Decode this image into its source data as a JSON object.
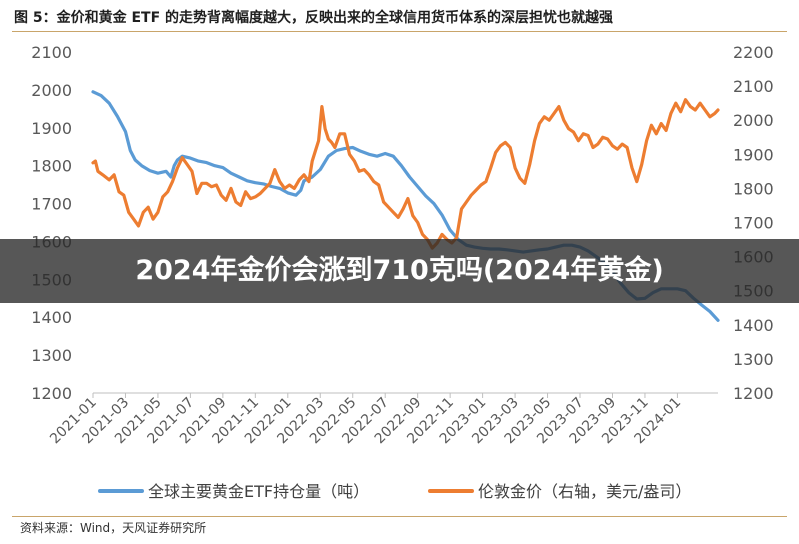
{
  "figure": {
    "title": "图 5：金价和黄金 ETF 的走势背离幅度越大，反映出来的全球信用货币体系的深层担忧也就越强",
    "source": "资料来源：Wind，天风证券研究所"
  },
  "overlay": {
    "headline": "2024年金价会涨到710克吗(2024年黄金)"
  },
  "colors": {
    "etf": "#5b9bd5",
    "gold": "#ed7d31",
    "axis": "#bfbfbf",
    "tick_text": "#595959",
    "banner": "#282828"
  },
  "chart_data": {
    "type": "line",
    "x_tick_labels": [
      "2021-01",
      "2021-03",
      "2021-05",
      "2021-07",
      "2021-09",
      "2021-11",
      "2022-01",
      "2022-03",
      "2022-05",
      "2022-07",
      "2022-09",
      "2022-11",
      "2023-01",
      "2023-03",
      "2023-05",
      "2023-07",
      "2023-09",
      "2023-11",
      "2024-01"
    ],
    "x_range_months": [
      0,
      38.5
    ],
    "grid": false,
    "legend_position": "bottom",
    "y_left": {
      "ticks": [
        1200,
        1300,
        1400,
        1500,
        1600,
        1700,
        1800,
        1900,
        2000,
        2100
      ],
      "ylim": [
        1200,
        2100
      ]
    },
    "y_right": {
      "ticks": [
        1200,
        1300,
        1400,
        1500,
        1600,
        1700,
        1800,
        1900,
        2000,
        2100,
        2200
      ],
      "ylim": [
        1200,
        2200
      ]
    },
    "series": [
      {
        "name": "全球主要黄金ETF持仓量（吨）",
        "axis": "left",
        "points": [
          [
            0.0,
            1995
          ],
          [
            0.5,
            1985
          ],
          [
            1.0,
            1965
          ],
          [
            1.5,
            1930
          ],
          [
            2.0,
            1890
          ],
          [
            2.3,
            1840
          ],
          [
            2.6,
            1815
          ],
          [
            3.0,
            1800
          ],
          [
            3.5,
            1787
          ],
          [
            4.0,
            1780
          ],
          [
            4.5,
            1785
          ],
          [
            4.8,
            1770
          ],
          [
            5.0,
            1800
          ],
          [
            5.2,
            1815
          ],
          [
            5.5,
            1825
          ],
          [
            6.0,
            1820
          ],
          [
            6.5,
            1812
          ],
          [
            7.0,
            1808
          ],
          [
            7.5,
            1800
          ],
          [
            8.0,
            1795
          ],
          [
            8.5,
            1780
          ],
          [
            9.0,
            1770
          ],
          [
            9.5,
            1760
          ],
          [
            10.0,
            1755
          ],
          [
            10.5,
            1752
          ],
          [
            11.0,
            1745
          ],
          [
            11.5,
            1740
          ],
          [
            12.0,
            1728
          ],
          [
            12.5,
            1722
          ],
          [
            12.8,
            1735
          ],
          [
            13.0,
            1760
          ],
          [
            13.5,
            1770
          ],
          [
            14.0,
            1790
          ],
          [
            14.5,
            1825
          ],
          [
            15.0,
            1840
          ],
          [
            15.5,
            1845
          ],
          [
            16.0,
            1848
          ],
          [
            16.5,
            1838
          ],
          [
            17.0,
            1830
          ],
          [
            17.5,
            1825
          ],
          [
            18.0,
            1832
          ],
          [
            18.5,
            1825
          ],
          [
            19.0,
            1800
          ],
          [
            19.5,
            1770
          ],
          [
            20.0,
            1745
          ],
          [
            20.5,
            1720
          ],
          [
            21.0,
            1700
          ],
          [
            21.5,
            1670
          ],
          [
            22.0,
            1630
          ],
          [
            22.5,
            1605
          ],
          [
            23.0,
            1590
          ],
          [
            23.5,
            1585
          ],
          [
            24.0,
            1582
          ],
          [
            24.5,
            1580
          ],
          [
            25.0,
            1580
          ],
          [
            25.5,
            1578
          ],
          [
            26.0,
            1575
          ],
          [
            26.5,
            1572
          ],
          [
            27.0,
            1575
          ],
          [
            27.5,
            1578
          ],
          [
            28.0,
            1580
          ],
          [
            28.5,
            1585
          ],
          [
            29.0,
            1590
          ],
          [
            29.5,
            1590
          ],
          [
            30.0,
            1585
          ],
          [
            30.5,
            1575
          ],
          [
            31.0,
            1560
          ],
          [
            31.5,
            1545
          ],
          [
            32.0,
            1520
          ],
          [
            32.5,
            1490
          ],
          [
            33.0,
            1465
          ],
          [
            33.5,
            1448
          ],
          [
            34.0,
            1450
          ],
          [
            34.5,
            1465
          ],
          [
            35.0,
            1475
          ],
          [
            35.5,
            1475
          ],
          [
            36.0,
            1475
          ],
          [
            36.5,
            1470
          ],
          [
            37.0,
            1450
          ],
          [
            37.5,
            1432
          ],
          [
            38.0,
            1415
          ],
          [
            38.5,
            1392
          ]
        ]
      },
      {
        "name": "伦敦金价（右轴，美元/盎司）",
        "axis": "right",
        "points": [
          [
            0.0,
            1875
          ],
          [
            0.15,
            1880
          ],
          [
            0.3,
            1850
          ],
          [
            0.6,
            1840
          ],
          [
            1.0,
            1825
          ],
          [
            1.3,
            1840
          ],
          [
            1.6,
            1790
          ],
          [
            1.9,
            1780
          ],
          [
            2.2,
            1730
          ],
          [
            2.5,
            1710
          ],
          [
            2.8,
            1690
          ],
          [
            3.1,
            1730
          ],
          [
            3.4,
            1745
          ],
          [
            3.7,
            1710
          ],
          [
            4.0,
            1730
          ],
          [
            4.3,
            1775
          ],
          [
            4.6,
            1790
          ],
          [
            4.9,
            1820
          ],
          [
            5.2,
            1860
          ],
          [
            5.5,
            1890
          ],
          [
            5.8,
            1870
          ],
          [
            6.1,
            1850
          ],
          [
            6.4,
            1785
          ],
          [
            6.7,
            1815
          ],
          [
            7.0,
            1815
          ],
          [
            7.3,
            1805
          ],
          [
            7.6,
            1810
          ],
          [
            7.9,
            1780
          ],
          [
            8.2,
            1765
          ],
          [
            8.5,
            1800
          ],
          [
            8.8,
            1760
          ],
          [
            9.1,
            1750
          ],
          [
            9.4,
            1790
          ],
          [
            9.7,
            1770
          ],
          [
            10.0,
            1775
          ],
          [
            10.3,
            1785
          ],
          [
            10.6,
            1800
          ],
          [
            10.9,
            1815
          ],
          [
            11.2,
            1855
          ],
          [
            11.5,
            1820
          ],
          [
            11.8,
            1800
          ],
          [
            12.1,
            1810
          ],
          [
            12.4,
            1800
          ],
          [
            12.7,
            1825
          ],
          [
            13.0,
            1840
          ],
          [
            13.3,
            1820
          ],
          [
            13.5,
            1880
          ],
          [
            13.7,
            1910
          ],
          [
            13.9,
            1940
          ],
          [
            14.1,
            2040
          ],
          [
            14.3,
            1975
          ],
          [
            14.5,
            1945
          ],
          [
            14.7,
            1935
          ],
          [
            14.9,
            1920
          ],
          [
            15.2,
            1960
          ],
          [
            15.5,
            1960
          ],
          [
            15.8,
            1900
          ],
          [
            16.1,
            1880
          ],
          [
            16.4,
            1850
          ],
          [
            16.7,
            1855
          ],
          [
            17.0,
            1840
          ],
          [
            17.3,
            1820
          ],
          [
            17.6,
            1810
          ],
          [
            17.9,
            1760
          ],
          [
            18.2,
            1745
          ],
          [
            18.5,
            1730
          ],
          [
            18.8,
            1715
          ],
          [
            19.1,
            1740
          ],
          [
            19.4,
            1770
          ],
          [
            19.7,
            1720
          ],
          [
            20.0,
            1700
          ],
          [
            20.3,
            1665
          ],
          [
            20.6,
            1650
          ],
          [
            20.9,
            1625
          ],
          [
            21.2,
            1640
          ],
          [
            21.5,
            1665
          ],
          [
            21.8,
            1650
          ],
          [
            22.1,
            1640
          ],
          [
            22.4,
            1655
          ],
          [
            22.7,
            1740
          ],
          [
            23.0,
            1760
          ],
          [
            23.3,
            1780
          ],
          [
            23.6,
            1795
          ],
          [
            23.9,
            1810
          ],
          [
            24.2,
            1820
          ],
          [
            24.5,
            1860
          ],
          [
            24.8,
            1905
          ],
          [
            25.1,
            1925
          ],
          [
            25.4,
            1935
          ],
          [
            25.7,
            1920
          ],
          [
            26.0,
            1860
          ],
          [
            26.3,
            1830
          ],
          [
            26.6,
            1815
          ],
          [
            26.9,
            1870
          ],
          [
            27.2,
            1940
          ],
          [
            27.5,
            1990
          ],
          [
            27.8,
            2010
          ],
          [
            28.1,
            2000
          ],
          [
            28.4,
            2020
          ],
          [
            28.7,
            2040
          ],
          [
            29.0,
            2000
          ],
          [
            29.3,
            1975
          ],
          [
            29.6,
            1965
          ],
          [
            29.9,
            1940
          ],
          [
            30.2,
            1960
          ],
          [
            30.5,
            1955
          ],
          [
            30.8,
            1920
          ],
          [
            31.1,
            1930
          ],
          [
            31.4,
            1950
          ],
          [
            31.7,
            1945
          ],
          [
            32.0,
            1925
          ],
          [
            32.3,
            1915
          ],
          [
            32.6,
            1930
          ],
          [
            32.9,
            1920
          ],
          [
            33.2,
            1860
          ],
          [
            33.5,
            1820
          ],
          [
            33.8,
            1870
          ],
          [
            34.1,
            1940
          ],
          [
            34.4,
            1985
          ],
          [
            34.7,
            1960
          ],
          [
            35.0,
            1990
          ],
          [
            35.3,
            1970
          ],
          [
            35.6,
            2020
          ],
          [
            35.9,
            2050
          ],
          [
            36.2,
            2025
          ],
          [
            36.5,
            2060
          ],
          [
            36.8,
            2040
          ],
          [
            37.1,
            2030
          ],
          [
            37.4,
            2050
          ],
          [
            37.7,
            2030
          ],
          [
            38.0,
            2010
          ],
          [
            38.3,
            2020
          ],
          [
            38.5,
            2030
          ]
        ]
      }
    ]
  }
}
